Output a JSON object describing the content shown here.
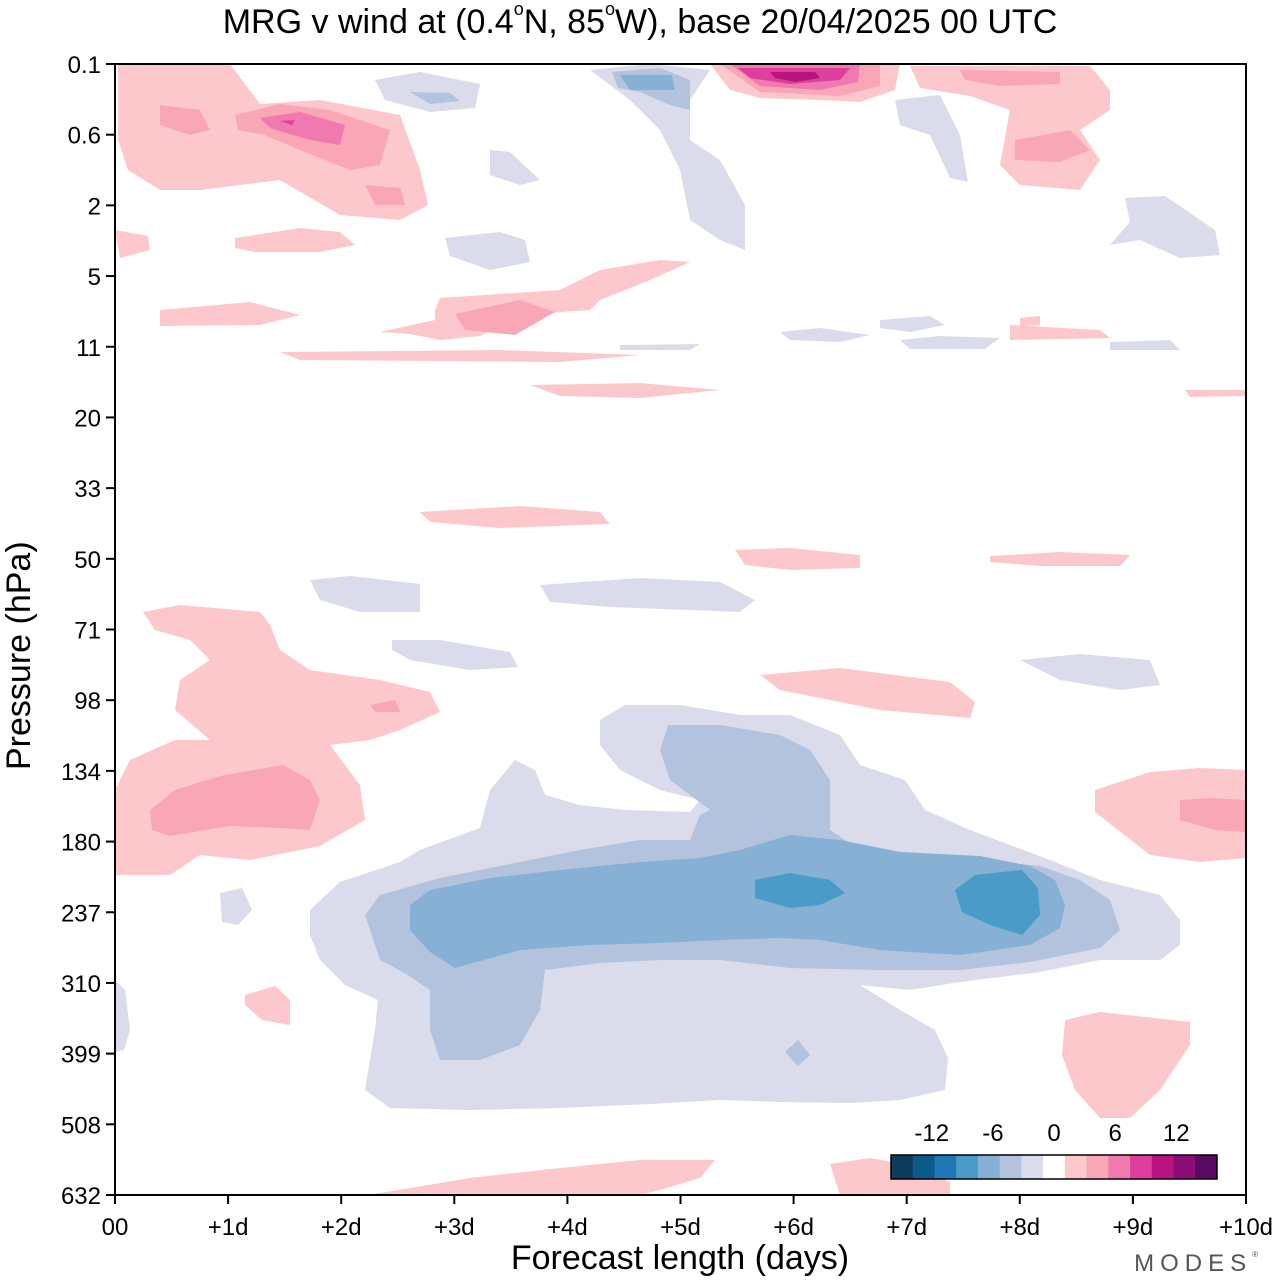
{
  "chart_data": {
    "type": "heatmap",
    "title": "MRG v wind at (0.4°N, 85°W),  base 20/04/2025  00 UTC",
    "title_parts": {
      "prefix": "MRG v wind at (0.4",
      "deg1": "o",
      "mid": "N, 85",
      "deg2": "o",
      "suffix": "W),  base 20/04/2025  00 UTC"
    },
    "xlabel": "Forecast length (days)",
    "ylabel": "Pressure (hPa)",
    "xlim": [
      0,
      10
    ],
    "x_ticks": [
      "00",
      "+1d",
      "+2d",
      "+3d",
      "+4d",
      "+5d",
      "+6d",
      "+7d",
      "+8d",
      "+9d",
      "+10d"
    ],
    "y_ticks": [
      "0.1",
      "0.6",
      "2",
      "5",
      "11",
      "20",
      "33",
      "50",
      "71",
      "98",
      "134",
      "180",
      "237",
      "310",
      "399",
      "508",
      "632"
    ],
    "colorbar": {
      "tick_labels": [
        "-12",
        "-6",
        "0",
        "6",
        "12"
      ],
      "levels": [
        -16,
        -14,
        -12,
        -10,
        -8,
        -6,
        -4,
        -2,
        2,
        4,
        6,
        8,
        10,
        12,
        14,
        16
      ],
      "colors": [
        "#0d3c5e",
        "#0a5b8a",
        "#1f78b4",
        "#4b9bc8",
        "#86b0d4",
        "#b3c3de",
        "#dadbeb",
        "#ffffff",
        "#fcc8cb",
        "#f9a6b6",
        "#f07aaf",
        "#de3f9d",
        "#b8137f",
        "#8b0d75",
        "#5b0a62"
      ]
    },
    "features": [
      {
        "name": "main negative core",
        "days": [
          3.0,
          8.2
        ],
        "pressure_hPa": [
          180,
          310
        ],
        "min_value": -12
      },
      {
        "name": "negative core near +6d",
        "day": 6.0,
        "pressure_hPa": 220,
        "value": -12
      },
      {
        "name": "negative core near +8d",
        "day": 8.0,
        "pressure_hPa": 230,
        "value": -12
      },
      {
        "name": "strong positive top",
        "day": 6.1,
        "pressure_hPa": 0.2,
        "value": 14
      },
      {
        "name": "positive lower-left",
        "days": [
          0.3,
          1.8
        ],
        "pressure_hPa": [
          134,
          200
        ],
        "value": 8
      }
    ]
  },
  "brand": {
    "text": "MODES",
    "mark": "®"
  },
  "colors": {
    "axis": "#000000",
    "background": "#ffffff"
  }
}
